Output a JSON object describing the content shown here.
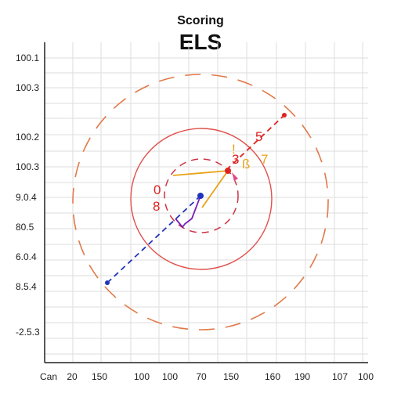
{
  "chart_data": {
    "type": "scatter",
    "title": "Scoring",
    "subtitle": "ELS",
    "xlabel": "",
    "ylabel": "",
    "grid": true,
    "x_ticks": [
      "Can",
      "20",
      "150",
      "100",
      "100",
      "70",
      "150",
      "160",
      "190",
      "107",
      "100"
    ],
    "y_ticks": [
      "100.1",
      "100.3",
      "100.2",
      "100.3",
      "9.0.4",
      "80.5",
      "6.0.4",
      "8.5.4",
      "-2.5.3"
    ],
    "circles": [
      {
        "name": "outer-ring",
        "style": "dashed",
        "color": "#e07a4a"
      },
      {
        "name": "middle-ring",
        "style": "solid",
        "color": "#e0504c"
      },
      {
        "name": "inner-ring",
        "style": "dashed",
        "color": "#cc3344"
      }
    ],
    "lines": [
      {
        "name": "blue-dashed",
        "color": "#2233bb",
        "style": "dashed"
      },
      {
        "name": "red-dashed",
        "color": "#dd2222",
        "style": "dashed"
      },
      {
        "name": "orange-solid",
        "color": "#e8a317",
        "style": "solid"
      },
      {
        "name": "purple-solid",
        "color": "#7a1fb5",
        "style": "solid"
      }
    ],
    "annotations": [
      {
        "text": "0",
        "color": "#dd2222"
      },
      {
        "text": "8",
        "color": "#dd2222"
      },
      {
        "text": "5",
        "color": "#dd2222"
      },
      {
        "text": "3",
        "color": "#dd2222"
      },
      {
        "text": "ß",
        "color": "#e8a317"
      },
      {
        "text": "7",
        "color": "#e8a317"
      },
      {
        "text": "ǃ",
        "color": "#e8a317"
      }
    ]
  }
}
